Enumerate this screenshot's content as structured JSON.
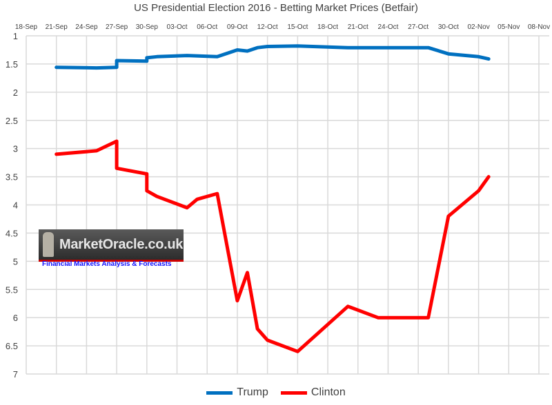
{
  "chart_data": {
    "type": "line",
    "title": "US Presidential Election 2016 - Betting Market Prices (Betfair)",
    "xlabel": "",
    "ylabel": "",
    "x_tick_labels": [
      "18-Sep",
      "21-Sep",
      "24-Sep",
      "27-Sep",
      "30-Sep",
      "03-Oct",
      "06-Oct",
      "09-Oct",
      "12-Oct",
      "15-Oct",
      "18-Oct",
      "21-Oct",
      "24-Oct",
      "27-Oct",
      "30-Oct",
      "02-Nov",
      "05-Nov",
      "08-Nov"
    ],
    "x_axis_position": "top",
    "xlim": [
      "2016-09-18",
      "2016-11-08"
    ],
    "y_tick_labels": [
      "1",
      "1.5",
      "2",
      "2.5",
      "3",
      "3.5",
      "4",
      "4.5",
      "5",
      "5.5",
      "6",
      "6.5",
      "7"
    ],
    "ylim": [
      1,
      7
    ],
    "y_reversed": true,
    "grid": true,
    "legend_position": "bottom",
    "series": [
      {
        "name": "Trump",
        "color": "#0070C0",
        "x": [
          "2016-09-21",
          "2016-09-25",
          "2016-09-27",
          "2016-09-27",
          "2016-09-30",
          "2016-09-30",
          "2016-10-01",
          "2016-10-04",
          "2016-10-07",
          "2016-10-09",
          "2016-10-10",
          "2016-10-11",
          "2016-10-12",
          "2016-10-15",
          "2016-10-20",
          "2016-10-28",
          "2016-10-30",
          "2016-11-02",
          "2016-11-03"
        ],
        "values": [
          1.56,
          1.57,
          1.56,
          1.44,
          1.45,
          1.39,
          1.37,
          1.35,
          1.37,
          1.25,
          1.27,
          1.21,
          1.19,
          1.18,
          1.21,
          1.21,
          1.32,
          1.37,
          1.41
        ]
      },
      {
        "name": "Clinton",
        "color": "#FF0000",
        "x": [
          "2016-09-21",
          "2016-09-25",
          "2016-09-27",
          "2016-09-27",
          "2016-09-30",
          "2016-09-30",
          "2016-10-01",
          "2016-10-04",
          "2016-10-05",
          "2016-10-07",
          "2016-10-09",
          "2016-10-10",
          "2016-10-11",
          "2016-10-12",
          "2016-10-15",
          "2016-10-20",
          "2016-10-23",
          "2016-10-28",
          "2016-10-30",
          "2016-11-02",
          "2016-11-03"
        ],
        "values": [
          3.1,
          3.04,
          2.87,
          3.35,
          3.45,
          3.75,
          3.85,
          4.05,
          3.9,
          3.8,
          5.7,
          5.2,
          6.2,
          6.4,
          6.6,
          5.8,
          6.0,
          6.0,
          4.2,
          3.75,
          3.5
        ]
      }
    ]
  },
  "watermark": {
    "logo": "MarketOracle.co.uk",
    "tagline": "Financial Markets Analysis & Forecasts"
  }
}
